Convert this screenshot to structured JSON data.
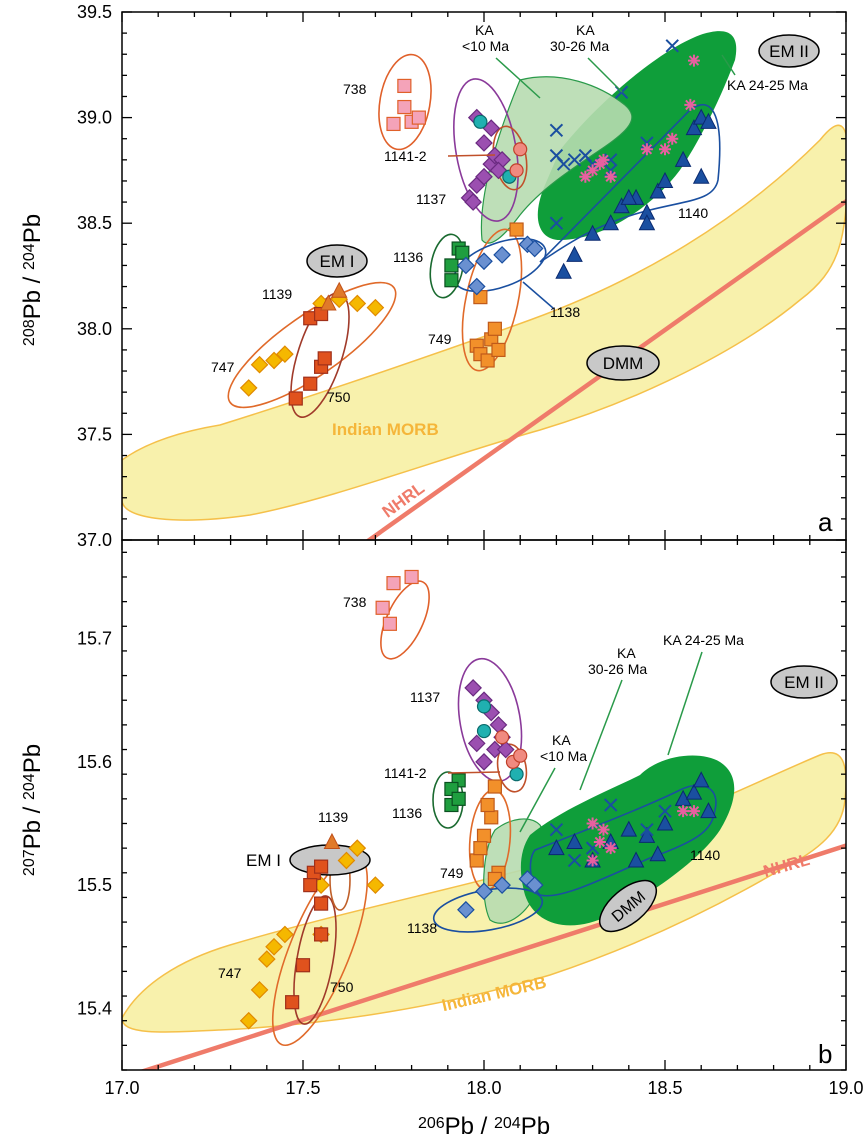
{
  "chart_data": [
    {
      "type": "scatter",
      "panel_label": "a",
      "xlim": [
        17.0,
        19.0
      ],
      "ylim": [
        37.0,
        39.5
      ],
      "yticks": [
        "37.0",
        "37.5",
        "38.0",
        "38.5",
        "39.0",
        "39.5"
      ],
      "ylabel": {
        "pre": "208",
        "mid": "Pb / ",
        "sup2": "204",
        "post": "Pb"
      },
      "field_labels": {
        "morb": "Indian MORB",
        "nhrl": "NHRL",
        "em1": "EM I",
        "em2": "EM II",
        "dmm": "DMM",
        "ka10_l1": "KA",
        "ka10_l2": "<10 Ma",
        "ka30_l1": "KA",
        "ka30_l2": "30-26 Ma",
        "ka24": "KA 24-25 Ma"
      },
      "series": [
        {
          "name": "747",
          "marker": "diamond",
          "color": "#f5b800",
          "points": [
            [
              17.35,
              37.72
            ],
            [
              17.38,
              37.83
            ],
            [
              17.42,
              37.85
            ],
            [
              17.45,
              37.88
            ],
            [
              17.55,
              38.12
            ],
            [
              17.6,
              38.14
            ],
            [
              17.65,
              38.12
            ],
            [
              17.7,
              38.1
            ]
          ]
        },
        {
          "name": "750",
          "marker": "square",
          "color": "#e0521d",
          "points": [
            [
              17.48,
              37.67
            ],
            [
              17.52,
              37.74
            ],
            [
              17.55,
              37.82
            ],
            [
              17.56,
              37.86
            ],
            [
              17.52,
              38.05
            ],
            [
              17.55,
              38.07
            ]
          ]
        },
        {
          "name": "1139",
          "marker": "triangle",
          "color": "#e07a2a",
          "points": [
            [
              17.57,
              38.12
            ],
            [
              17.6,
              38.18
            ]
          ]
        },
        {
          "name": "738",
          "marker": "square",
          "color": "#f4a3b9",
          "points": [
            [
              17.75,
              38.97
            ],
            [
              17.78,
              39.05
            ],
            [
              17.8,
              38.98
            ],
            [
              17.82,
              39.0
            ],
            [
              17.78,
              39.15
            ]
          ]
        },
        {
          "name": "1137",
          "marker": "diamond",
          "color": "#9b4fb0",
          "points": [
            [
              17.96,
              38.62
            ],
            [
              17.98,
              38.68
            ],
            [
              18.0,
              38.72
            ],
            [
              18.02,
              38.78
            ],
            [
              18.03,
              38.82
            ],
            [
              18.05,
              38.8
            ],
            [
              17.98,
              39.0
            ],
            [
              18.02,
              38.95
            ],
            [
              18.0,
              38.88
            ],
            [
              17.97,
              38.6
            ],
            [
              18.04,
              38.75
            ]
          ]
        },
        {
          "name": "1141-2",
          "marker": "circle",
          "color": "#20b0b0",
          "points": [
            [
              17.99,
              38.98
            ],
            [
              18.07,
              38.72
            ]
          ]
        },
        {
          "name": "1141-2 (pink)",
          "marker": "circle",
          "color": "#f08a80",
          "points": [
            [
              18.1,
              38.85
            ],
            [
              18.09,
              38.75
            ]
          ]
        },
        {
          "name": "1136",
          "marker": "square",
          "color": "#1f9e3f",
          "points": [
            [
              17.91,
              38.3
            ],
            [
              17.93,
              38.38
            ],
            [
              17.91,
              38.23
            ],
            [
              17.94,
              38.36
            ]
          ]
        },
        {
          "name": "749",
          "marker": "square",
          "color": "#f2902a",
          "points": [
            [
              17.98,
              37.92
            ],
            [
              18.02,
              37.95
            ],
            [
              18.03,
              38.0
            ],
            [
              17.99,
              37.88
            ],
            [
              18.01,
              37.85
            ],
            [
              17.99,
              38.15
            ],
            [
              18.04,
              37.9
            ],
            [
              18.09,
              38.47
            ]
          ]
        },
        {
          "name": "1138",
          "marker": "diamond",
          "color": "#6a90d0",
          "points": [
            [
              17.95,
              38.3
            ],
            [
              18.0,
              38.32
            ],
            [
              18.05,
              38.35
            ],
            [
              18.12,
              38.4
            ],
            [
              18.14,
              38.38
            ],
            [
              17.98,
              38.2
            ]
          ]
        },
        {
          "name": "1140",
          "marker": "triangle",
          "color": "#1a4fa0",
          "points": [
            [
              18.22,
              38.27
            ],
            [
              18.25,
              38.35
            ],
            [
              18.3,
              38.45
            ],
            [
              18.35,
              38.5
            ],
            [
              18.38,
              38.58
            ],
            [
              18.42,
              38.62
            ],
            [
              18.45,
              38.55
            ],
            [
              18.48,
              38.65
            ],
            [
              18.5,
              38.7
            ],
            [
              18.55,
              38.8
            ],
            [
              18.58,
              38.95
            ],
            [
              18.6,
              39.0
            ],
            [
              18.62,
              38.98
            ],
            [
              18.6,
              38.72
            ],
            [
              18.4,
              38.62
            ],
            [
              18.45,
              38.5
            ]
          ]
        },
        {
          "name": "KA x",
          "marker": "x",
          "color": "#1a4fa0",
          "points": [
            [
              18.2,
              38.82
            ],
            [
              18.22,
              38.78
            ],
            [
              18.25,
              38.8
            ],
            [
              18.3,
              38.78
            ],
            [
              18.35,
              38.75
            ],
            [
              18.38,
              39.12
            ],
            [
              18.52,
              39.34
            ],
            [
              18.2,
              38.94
            ],
            [
              18.28,
              38.82
            ],
            [
              18.2,
              38.5
            ],
            [
              18.35,
              38.8
            ],
            [
              18.45,
              38.88
            ]
          ]
        },
        {
          "name": "KA star",
          "marker": "star",
          "color": "#e85fa0",
          "points": [
            [
              18.3,
              38.75
            ],
            [
              18.32,
              38.78
            ],
            [
              18.35,
              38.72
            ],
            [
              18.33,
              38.8
            ],
            [
              18.45,
              38.85
            ],
            [
              18.5,
              38.85
            ],
            [
              18.52,
              38.9
            ],
            [
              18.58,
              39.27
            ],
            [
              18.57,
              39.06
            ],
            [
              18.28,
              38.72
            ]
          ]
        }
      ]
    },
    {
      "type": "scatter",
      "panel_label": "b",
      "xlim": [
        17.0,
        19.0
      ],
      "ylim": [
        15.35,
        15.78
      ],
      "xticks": [
        "17.0",
        "17.5",
        "18.0",
        "18.5",
        "19.0"
      ],
      "yticks": [
        "15.4",
        "15.5",
        "15.6",
        "15.7"
      ],
      "xlabel": {
        "pre": "206",
        "mid": "Pb / ",
        "sup2": "204",
        "post": "Pb"
      },
      "ylabel": {
        "pre": "207",
        "mid": "Pb / ",
        "sup2": "204",
        "post": "Pb"
      },
      "field_labels": {
        "morb": "Indian MORB",
        "nhrl": "NHRL",
        "em1": "EM I",
        "em2": "EM II",
        "dmm": "DMM",
        "ka10_l1": "KA",
        "ka10_l2": "<10 Ma",
        "ka30_l1": "KA",
        "ka30_l2": "30-26 Ma",
        "ka24": "KA 24-25 Ma"
      },
      "series": [
        {
          "name": "747",
          "marker": "diamond",
          "color": "#f5b800",
          "points": [
            [
              17.35,
              15.39
            ],
            [
              17.38,
              15.415
            ],
            [
              17.4,
              15.44
            ],
            [
              17.42,
              15.45
            ],
            [
              17.45,
              15.46
            ],
            [
              17.55,
              15.5
            ],
            [
              17.62,
              15.52
            ],
            [
              17.65,
              15.53
            ],
            [
              17.7,
              15.5
            ],
            [
              17.55,
              15.46
            ]
          ]
        },
        {
          "name": "750",
          "marker": "square",
          "color": "#e0521d",
          "points": [
            [
              17.47,
              15.405
            ],
            [
              17.5,
              15.435
            ],
            [
              17.55,
              15.46
            ],
            [
              17.55,
              15.485
            ],
            [
              17.53,
              15.51
            ],
            [
              17.55,
              15.515
            ],
            [
              17.52,
              15.5
            ]
          ]
        },
        {
          "name": "1139",
          "marker": "triangle",
          "color": "#e07a2a",
          "points": [
            [
              17.58,
              15.535
            ]
          ]
        },
        {
          "name": "738",
          "marker": "square",
          "color": "#f4a3b9",
          "points": [
            [
              17.72,
              15.725
            ],
            [
              17.74,
              15.712
            ],
            [
              17.75,
              15.745
            ],
            [
              17.8,
              15.75
            ]
          ]
        },
        {
          "name": "1137",
          "marker": "diamond",
          "color": "#9b4fb0",
          "points": [
            [
              17.97,
              15.66
            ],
            [
              18.0,
              15.65
            ],
            [
              18.02,
              15.64
            ],
            [
              18.04,
              15.63
            ],
            [
              18.05,
              15.62
            ],
            [
              18.03,
              15.61
            ],
            [
              18.0,
              15.6
            ],
            [
              17.98,
              15.615
            ],
            [
              18.06,
              15.61
            ]
          ]
        },
        {
          "name": "1141-2",
          "marker": "circle",
          "color": "#20b0b0",
          "points": [
            [
              18.0,
              15.645
            ],
            [
              18.0,
              15.625
            ],
            [
              18.09,
              15.59
            ]
          ]
        },
        {
          "name": "1141-2 (pink)",
          "marker": "circle",
          "color": "#f08a80",
          "points": [
            [
              18.05,
              15.62
            ],
            [
              18.08,
              15.6
            ],
            [
              18.1,
              15.605
            ]
          ]
        },
        {
          "name": "1136",
          "marker": "square",
          "color": "#1f9e3f",
          "points": [
            [
              17.91,
              15.565
            ],
            [
              17.93,
              15.585
            ],
            [
              17.91,
              15.578
            ],
            [
              17.93,
              15.57
            ]
          ]
        },
        {
          "name": "749",
          "marker": "square",
          "color": "#f2902a",
          "points": [
            [
              17.98,
              15.52
            ],
            [
              18.0,
              15.54
            ],
            [
              18.02,
              15.555
            ],
            [
              18.01,
              15.565
            ],
            [
              18.03,
              15.58
            ],
            [
              17.99,
              15.53
            ],
            [
              18.04,
              15.51
            ],
            [
              18.03,
              15.505
            ]
          ]
        },
        {
          "name": "1138",
          "marker": "diamond",
          "color": "#6a90d0",
          "points": [
            [
              17.95,
              15.48
            ],
            [
              18.0,
              15.495
            ],
            [
              18.05,
              15.5
            ],
            [
              18.12,
              15.505
            ],
            [
              18.14,
              15.5
            ]
          ]
        },
        {
          "name": "1140",
          "marker": "triangle",
          "color": "#1a4fa0",
          "points": [
            [
              18.2,
              15.53
            ],
            [
              18.25,
              15.535
            ],
            [
              18.3,
              15.52
            ],
            [
              18.35,
              15.535
            ],
            [
              18.4,
              15.545
            ],
            [
              18.45,
              15.54
            ],
            [
              18.5,
              15.55
            ],
            [
              18.55,
              15.57
            ],
            [
              18.58,
              15.575
            ],
            [
              18.6,
              15.585
            ],
            [
              18.62,
              15.56
            ],
            [
              18.48,
              15.525
            ],
            [
              18.42,
              15.52
            ]
          ]
        },
        {
          "name": "KA x",
          "marker": "x",
          "color": "#1a4fa0",
          "points": [
            [
              18.2,
              15.545
            ],
            [
              18.25,
              15.52
            ],
            [
              18.3,
              15.53
            ],
            [
              18.35,
              15.565
            ],
            [
              18.45,
              15.545
            ],
            [
              18.5,
              15.56
            ]
          ]
        },
        {
          "name": "KA star",
          "marker": "star",
          "color": "#e85fa0",
          "points": [
            [
              18.3,
              15.55
            ],
            [
              18.32,
              15.535
            ],
            [
              18.35,
              15.53
            ],
            [
              18.3,
              15.52
            ],
            [
              18.33,
              15.545
            ],
            [
              18.55,
              15.56
            ],
            [
              18.58,
              15.56
            ]
          ]
        }
      ]
    }
  ]
}
